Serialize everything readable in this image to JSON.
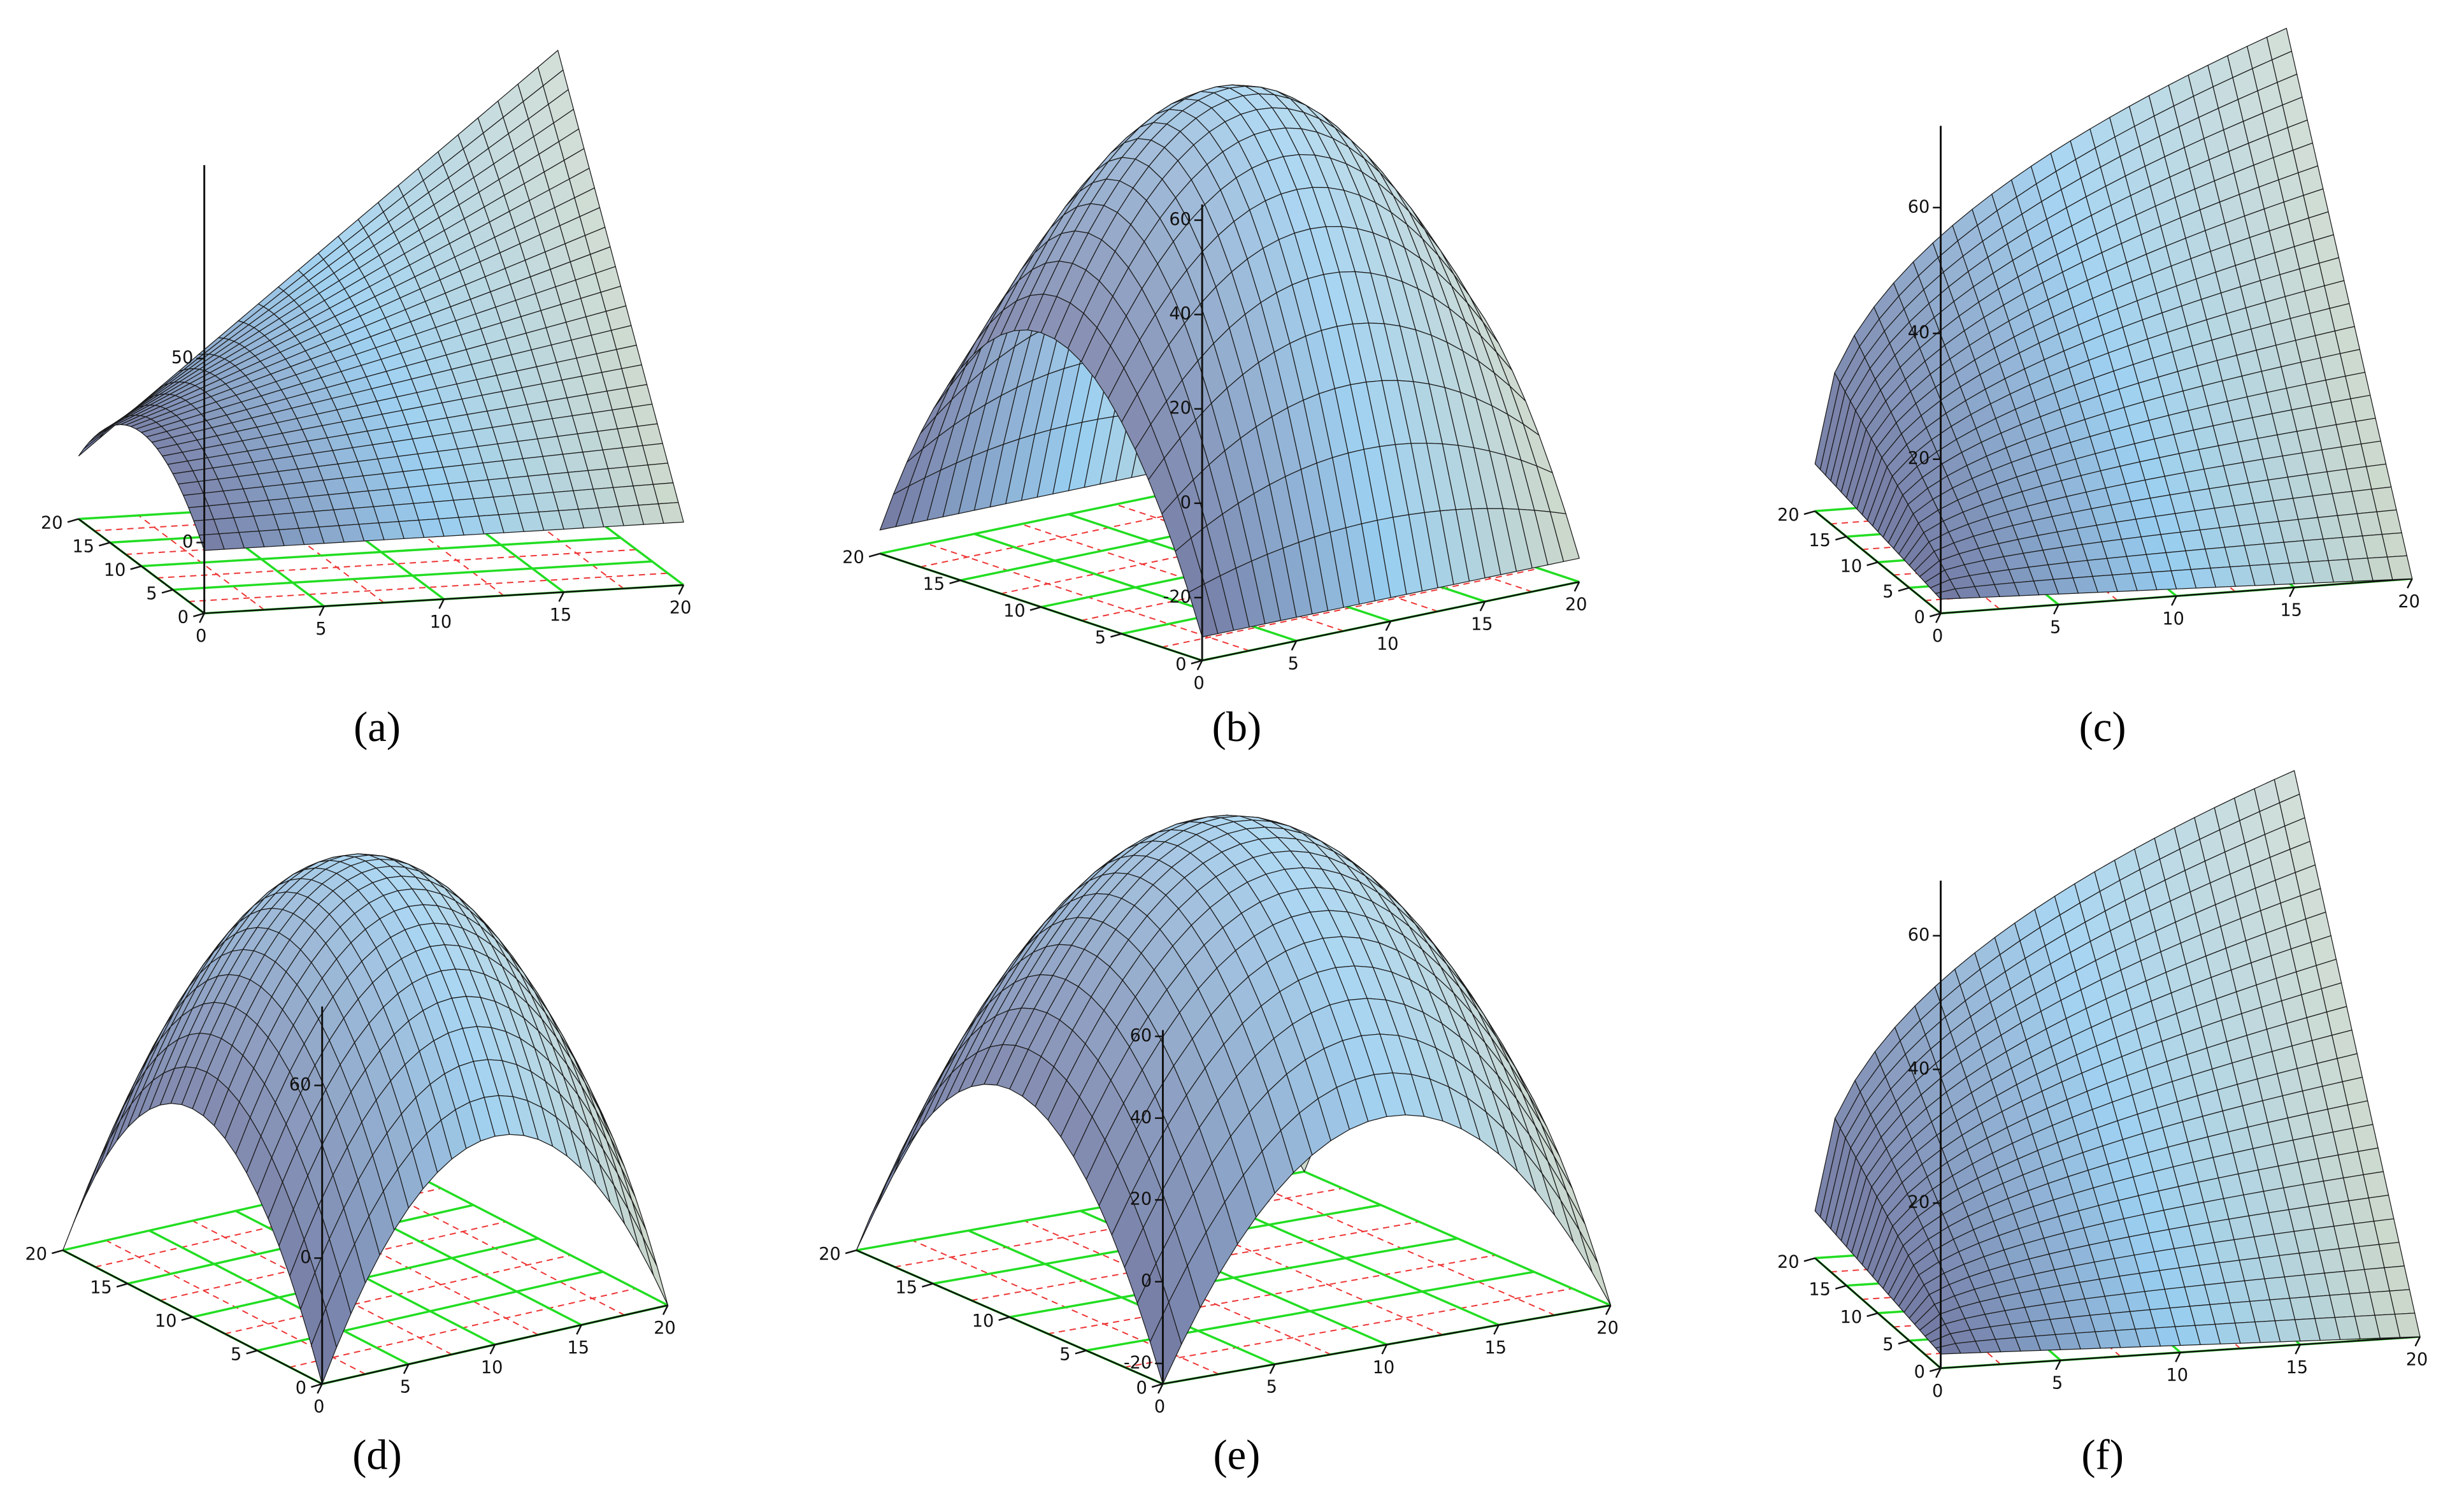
{
  "panels": [
    {
      "label": "(a)",
      "x_ticks": [
        0,
        5,
        10,
        15,
        20
      ],
      "y_ticks": [
        0,
        5,
        10,
        15,
        20
      ],
      "z_ticks": [
        0,
        50
      ]
    },
    {
      "label": "(b)",
      "x_ticks": [
        0,
        5,
        10,
        15,
        20
      ],
      "y_ticks": [
        0,
        5,
        10,
        15,
        20
      ],
      "z_ticks": [
        -20,
        0,
        20,
        40,
        60
      ]
    },
    {
      "label": "(c)",
      "x_ticks": [
        0,
        5,
        10,
        15,
        20
      ],
      "y_ticks": [
        0,
        5,
        10,
        15,
        20
      ],
      "z_ticks": [
        20,
        40,
        60
      ]
    },
    {
      "label": "(d)",
      "x_ticks": [
        0,
        5,
        10,
        15,
        20
      ],
      "y_ticks": [
        0,
        5,
        10,
        15,
        20
      ],
      "z_ticks": [
        0,
        60
      ]
    },
    {
      "label": "(e)",
      "x_ticks": [
        0,
        5,
        10,
        15,
        20
      ],
      "y_ticks": [
        0,
        5,
        10,
        15,
        20
      ],
      "z_ticks": [
        -20,
        0,
        20,
        40,
        60
      ]
    },
    {
      "label": "(f)",
      "x_ticks": [
        0,
        5,
        10,
        15,
        20
      ],
      "y_ticks": [
        0,
        5,
        10,
        15,
        20
      ],
      "z_ticks": [
        20,
        40,
        60
      ]
    }
  ]
}
